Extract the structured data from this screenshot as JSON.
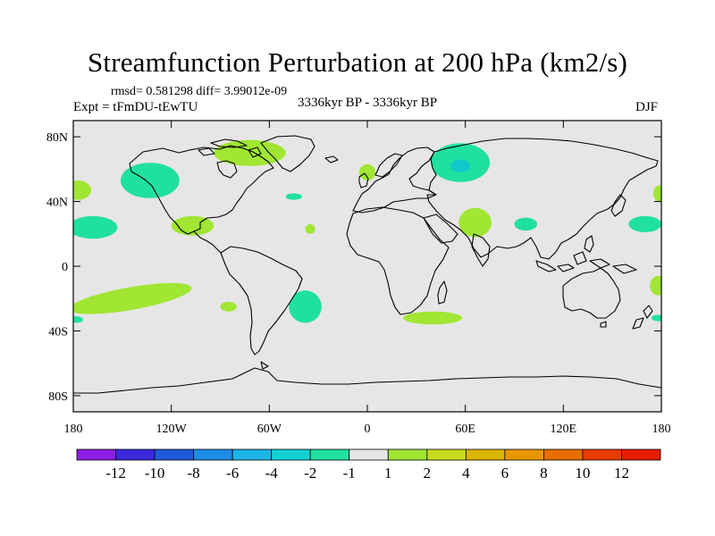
{
  "title": "Streamfunction Perturbation at 200 hPa (km2/s)",
  "stats": "rmsd= 0.581298 diff= 3.99012e-09",
  "experiment": "Expt = tFmDU-tEwTU",
  "period": "3336kyr BP - 3336kyr BP",
  "season": "DJF",
  "map": {
    "projection": "cylindrical-equidistant",
    "lon_range": [
      -180,
      180
    ],
    "lat_range": [
      -90,
      90
    ],
    "x_ticks": [
      {
        "lon": -180,
        "label": "180"
      },
      {
        "lon": -120,
        "label": "120W"
      },
      {
        "lon": -60,
        "label": "60W"
      },
      {
        "lon": 0,
        "label": "0"
      },
      {
        "lon": 60,
        "label": "60E"
      },
      {
        "lon": 120,
        "label": "120E"
      },
      {
        "lon": 180,
        "label": "180"
      }
    ],
    "y_ticks": [
      {
        "lat": 80,
        "label": "80N"
      },
      {
        "lat": 40,
        "label": "40N"
      },
      {
        "lat": 0,
        "label": "0"
      },
      {
        "lat": -40,
        "label": "40S"
      },
      {
        "lat": -80,
        "label": "80S"
      }
    ],
    "colors": {
      "background": "#e6e6e6",
      "pos_1_2": "#a0e632",
      "neg_1_2": "#20e0a0",
      "neg_2_4": "#10c8c8"
    },
    "anomalies": [
      {
        "name": "n-atlantic-greenland-positive",
        "lon": -72,
        "lat": 70,
        "rlon": 22,
        "rlat": 8,
        "level": "pos_1_2"
      },
      {
        "name": "ne-pacific-negative",
        "lon": -133,
        "lat": 53,
        "rlon": 18,
        "rlat": 11,
        "level": "neg_1_2"
      },
      {
        "name": "n-pacific-west-positive",
        "lon": -177,
        "lat": 47,
        "rlon": 8,
        "rlat": 6,
        "level": "pos_1_2"
      },
      {
        "name": "central-pacific-negative",
        "lon": -168,
        "lat": 24,
        "rlon": 15,
        "rlat": 7,
        "level": "neg_1_2"
      },
      {
        "name": "mexico-positive",
        "lon": -107,
        "lat": 25,
        "rlon": 13,
        "rlat": 6,
        "level": "pos_1_2"
      },
      {
        "name": "mid-atlantic-negative",
        "lon": -45,
        "lat": 43,
        "rlon": 5,
        "rlat": 2,
        "level": "neg_1_2"
      },
      {
        "name": "subtropical-atlantic-positive",
        "lon": -35,
        "lat": 23,
        "rlon": 3,
        "rlat": 3,
        "level": "pos_1_2"
      },
      {
        "name": "europe-positive",
        "lon": 0,
        "lat": 58,
        "rlon": 5,
        "rlat": 5,
        "level": "pos_1_2"
      },
      {
        "name": "siberia-negative",
        "lon": 57,
        "lat": 64,
        "rlon": 18,
        "rlat": 12,
        "level": "neg_1_2"
      },
      {
        "name": "siberia-core",
        "lon": 57,
        "lat": 62,
        "rlon": 6,
        "rlat": 4,
        "level": "neg_2_4"
      },
      {
        "name": "arabia-positive",
        "lon": 66,
        "lat": 27,
        "rlon": 10,
        "rlat": 9,
        "level": "pos_1_2"
      },
      {
        "name": "east-china-negative",
        "lon": 97,
        "lat": 26,
        "rlon": 7,
        "rlat": 4,
        "level": "neg_1_2"
      },
      {
        "name": "west-pacific-negative",
        "lon": 170,
        "lat": 26,
        "rlon": 10,
        "rlat": 5,
        "level": "neg_1_2"
      },
      {
        "name": "nw-pacific-positive",
        "lon": 179,
        "lat": 45,
        "rlon": 4,
        "rlat": 5,
        "level": "pos_1_2"
      },
      {
        "name": "south-pacific-positive",
        "lon": -145,
        "lat": -20,
        "rlon": 38,
        "rlat": 7,
        "level": "pos_1_2",
        "tilt": -10
      },
      {
        "name": "south-pacific-east-positive",
        "lon": -85,
        "lat": -25,
        "rlon": 5,
        "rlat": 3,
        "level": "pos_1_2"
      },
      {
        "name": "south-atlantic-negative",
        "lon": -38,
        "lat": -25,
        "rlon": 10,
        "rlat": 10,
        "level": "neg_1_2"
      },
      {
        "name": "south-indian-positive",
        "lon": 40,
        "lat": -32,
        "rlon": 18,
        "rlat": 4,
        "level": "pos_1_2"
      },
      {
        "name": "tasman-positive",
        "lon": 178,
        "lat": -12,
        "rlon": 5,
        "rlat": 6,
        "level": "pos_1_2"
      },
      {
        "name": "south-pacific-date-line-negative",
        "lon": 178,
        "lat": -32,
        "rlon": 4,
        "rlat": 2,
        "level": "neg_1_2"
      },
      {
        "name": "se-pacific-negative",
        "lon": -178,
        "lat": -33,
        "rlon": 4,
        "rlat": 2,
        "level": "neg_1_2"
      }
    ]
  },
  "colorbar": {
    "colors": [
      "#8c1ee6",
      "#3c28dc",
      "#1e5adc",
      "#1e8ce6",
      "#1eb4e6",
      "#14d2d2",
      "#20e0a0",
      "#e6e6e6",
      "#a0e632",
      "#c8dc1e",
      "#dcb400",
      "#e69600",
      "#e66e00",
      "#e63c00",
      "#e61e00"
    ],
    "labels": [
      "-12",
      "-10",
      "-8",
      "-6",
      "-4",
      "-2",
      "-1",
      "1",
      "2",
      "4",
      "6",
      "8",
      "10",
      "12"
    ]
  }
}
